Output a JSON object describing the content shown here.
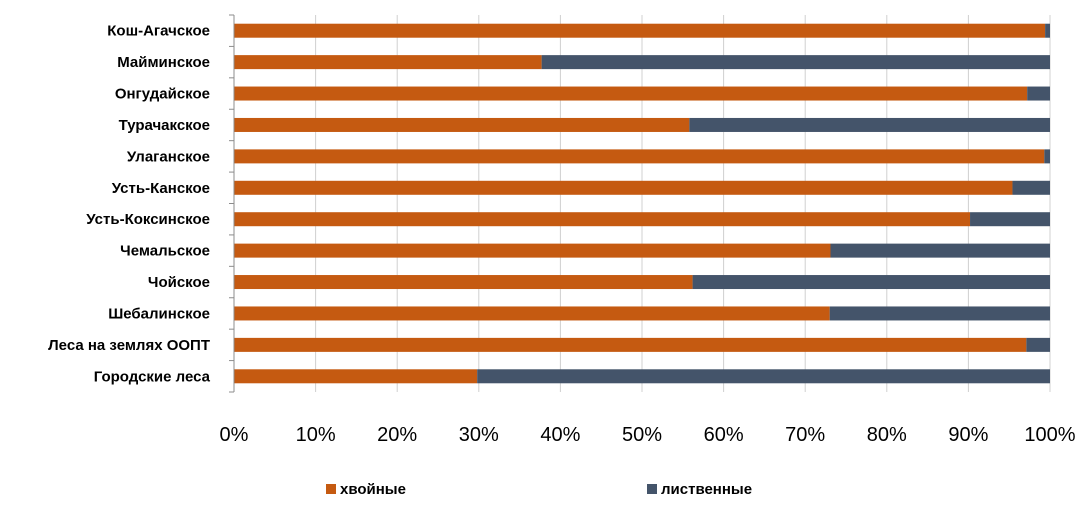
{
  "chart_data": {
    "type": "bar",
    "orientation": "horizontal",
    "stacking": "percent",
    "categories": [
      "Кош-Агачское",
      "Майминское",
      "Онгудайское",
      "Турачакское",
      "Улаганское",
      "Усть-Канское",
      "Усть-Коксинское",
      "Чемальское",
      "Чойское",
      "Шебалинское",
      "Леса на землях ООПТ",
      "Городские леса"
    ],
    "series": [
      {
        "name": "хвойные",
        "color": "#c55a11",
        "values": [
          99.4,
          37.7,
          97.2,
          55.8,
          99.3,
          95.4,
          90.2,
          73.1,
          56.2,
          73.0,
          97.1,
          29.8
        ]
      },
      {
        "name": "лиственные",
        "color": "#44546a",
        "values": [
          0.6,
          62.3,
          2.8,
          44.2,
          0.7,
          4.6,
          9.8,
          26.9,
          43.8,
          27.0,
          2.9,
          70.2
        ]
      }
    ],
    "xticks": [
      "0%",
      "10%",
      "20%",
      "30%",
      "40%",
      "50%",
      "60%",
      "70%",
      "80%",
      "90%",
      "100%"
    ],
    "xlim": [
      0,
      100
    ],
    "grid": "vertical",
    "legend_position": "bottom"
  }
}
